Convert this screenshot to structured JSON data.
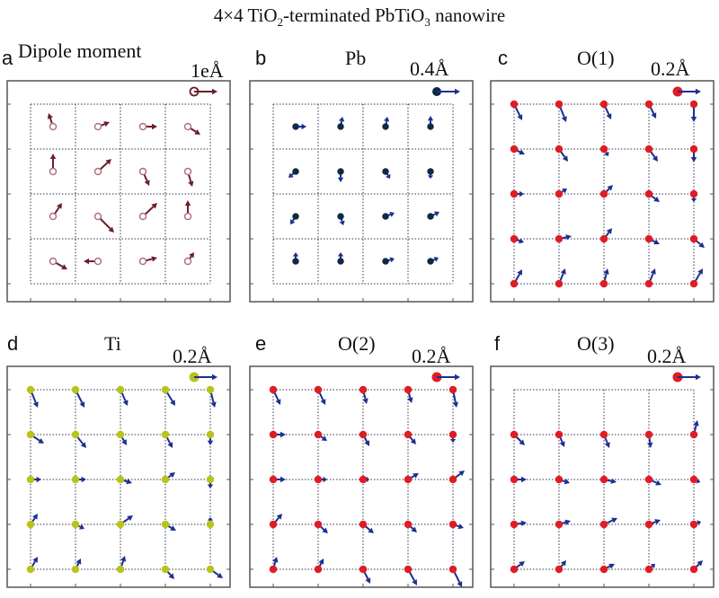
{
  "figure": {
    "title_prefix": "4×4 TiO",
    "title_sub1": "2",
    "title_mid": "-terminated PbTiO",
    "title_sub2": "3",
    "title_suffix": " nanowire"
  },
  "colors": {
    "frame": "#555555",
    "grid": "#333355",
    "arrow_dipole": "#6b1e2a",
    "arrow_disp": "#1c2f8f",
    "pb_atom": "#0d2a44",
    "o_atom": "#e01c24",
    "ti_atom": "#b8c41a",
    "dipole_ring": "#b07080"
  },
  "panels": [
    {
      "id": "a",
      "letter": "a",
      "name": "Dipole moment",
      "scale_label": "1eÅ",
      "kind": "dipole",
      "n": 4,
      "sites": "center",
      "vectors": [
        [
          [
            -5,
            -15
          ],
          [
            13,
            -5
          ],
          [
            16,
            0
          ],
          [
            14,
            9
          ]
        ],
        [
          [
            0,
            -20
          ],
          [
            15,
            -14
          ],
          [
            7,
            16
          ],
          [
            5,
            17
          ]
        ],
        [
          [
            10,
            -15
          ],
          [
            18,
            18
          ],
          [
            16,
            -15
          ],
          [
            0,
            -18
          ]
        ],
        [
          [
            16,
            9
          ],
          [
            -16,
            0
          ],
          [
            16,
            -4
          ],
          [
            7,
            -10
          ]
        ]
      ]
    },
    {
      "id": "b",
      "letter": "b",
      "name": "Pb",
      "scale_label": "0.4Å",
      "kind": "pb",
      "n": 4,
      "sites": "center",
      "vectors": [
        [
          [
            12,
            0
          ],
          [
            2,
            -11
          ],
          [
            2,
            -11
          ],
          [
            0,
            -12
          ]
        ],
        [
          [
            -8,
            7
          ],
          [
            0,
            12
          ],
          [
            5,
            8
          ],
          [
            0,
            8
          ]
        ],
        [
          [
            -6,
            9
          ],
          [
            3,
            10
          ],
          [
            10,
            -4
          ],
          [
            10,
            -5
          ]
        ],
        [
          [
            0,
            -10
          ],
          [
            0,
            -10
          ],
          [
            10,
            -3
          ],
          [
            9,
            -4
          ]
        ]
      ]
    },
    {
      "id": "c",
      "letter": "c",
      "name": "O(1)",
      "scale_label": "0.2Å",
      "kind": "o",
      "n": 5,
      "sites": "corners",
      "vectors": [
        [
          [
            9,
            18
          ],
          [
            8,
            20
          ],
          [
            8,
            17
          ],
          [
            8,
            16
          ],
          [
            0,
            20
          ]
        ],
        [
          [
            12,
            6
          ],
          [
            10,
            14
          ],
          [
            5,
            8
          ],
          [
            10,
            14
          ],
          [
            0,
            15
          ]
        ],
        [
          [
            11,
            0
          ],
          [
            9,
            -6
          ],
          [
            10,
            -10
          ],
          [
            12,
            9
          ],
          [
            0,
            9
          ]
        ],
        [
          [
            11,
            4
          ],
          [
            14,
            -3
          ],
          [
            9,
            -12
          ],
          [
            12,
            6
          ],
          [
            12,
            10
          ]
        ],
        [
          [
            9,
            -16
          ],
          [
            7,
            -17
          ],
          [
            4,
            -17
          ],
          [
            7,
            -17
          ],
          [
            10,
            -17
          ]
        ]
      ]
    },
    {
      "id": "d",
      "letter": "d",
      "name": "Ti",
      "scale_label": "0.2Å",
      "kind": "ti",
      "n": 5,
      "sites": "corners",
      "vectors": [
        [
          [
            8,
            20
          ],
          [
            10,
            20
          ],
          [
            8,
            18
          ],
          [
            11,
            18
          ],
          [
            5,
            20
          ]
        ],
        [
          [
            15,
            10
          ],
          [
            12,
            15
          ],
          [
            7,
            12
          ],
          [
            8,
            15
          ],
          [
            0,
            12
          ]
        ],
        [
          [
            12,
            0
          ],
          [
            12,
            0
          ],
          [
            13,
            4
          ],
          [
            11,
            -8
          ],
          [
            0,
            10
          ]
        ],
        [
          [
            8,
            -12
          ],
          [
            10,
            5
          ],
          [
            14,
            -10
          ],
          [
            12,
            7
          ],
          [
            0,
            -8
          ]
        ],
        [
          [
            8,
            -14
          ],
          [
            6,
            -12
          ],
          [
            5,
            -15
          ],
          [
            10,
            11
          ],
          [
            14,
            10
          ]
        ]
      ]
    },
    {
      "id": "e",
      "letter": "e",
      "name": "O(2)",
      "scale_label": "0.2Å",
      "kind": "o",
      "n": 5,
      "sites": "corners",
      "vectors": [
        [
          [
            8,
            17
          ],
          [
            8,
            17
          ],
          [
            4,
            16
          ],
          [
            4,
            15
          ],
          [
            4,
            20
          ]
        ],
        [
          [
            14,
            0
          ],
          [
            10,
            7
          ],
          [
            7,
            13
          ],
          [
            9,
            11
          ],
          [
            0,
            9
          ]
        ],
        [
          [
            14,
            0
          ],
          [
            10,
            0
          ],
          [
            7,
            0
          ],
          [
            12,
            -7
          ],
          [
            13,
            -10
          ]
        ],
        [
          [
            10,
            -12
          ],
          [
            11,
            10
          ],
          [
            12,
            10
          ],
          [
            10,
            9
          ],
          [
            12,
            4
          ]
        ],
        [
          [
            4,
            -14
          ],
          [
            6,
            -12
          ],
          [
            8,
            16
          ],
          [
            10,
            18
          ],
          [
            10,
            20
          ]
        ]
      ]
    },
    {
      "id": "f",
      "letter": "f",
      "name": "O(3)",
      "scale_label": "0.2Å",
      "kind": "o",
      "n": 5,
      "sites": "corners",
      "rows": [
        1,
        2,
        3,
        4
      ],
      "vectors": [
        [
          [
            0,
            0
          ],
          [
            0,
            0
          ],
          [
            0,
            0
          ],
          [
            0,
            0
          ],
          [
            0,
            0
          ]
        ],
        [
          [
            12,
            12
          ],
          [
            6,
            14
          ],
          [
            6,
            15
          ],
          [
            2,
            15
          ],
          [
            4,
            -16
          ]
        ],
        [
          [
            14,
            0
          ],
          [
            12,
            4
          ],
          [
            14,
            3
          ],
          [
            14,
            6
          ],
          [
            7,
            3
          ]
        ],
        [
          [
            14,
            -2
          ],
          [
            13,
            -4
          ],
          [
            15,
            -7
          ],
          [
            13,
            -5
          ],
          [
            8,
            -3
          ]
        ],
        [
          [
            12,
            -9
          ],
          [
            8,
            -10
          ],
          [
            12,
            -6
          ],
          [
            7,
            -6
          ],
          [
            10,
            -10
          ]
        ]
      ]
    }
  ]
}
